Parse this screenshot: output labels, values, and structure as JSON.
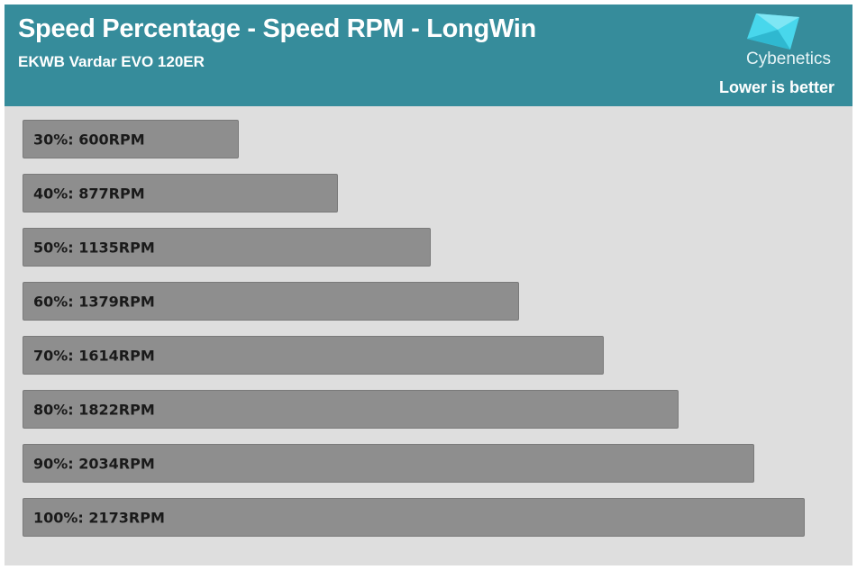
{
  "header": {
    "title": "Speed Percentage - Speed RPM - LongWin",
    "subtitle": "EKWB Vardar EVO 120ER",
    "brand": "Cybenetics",
    "note": "Lower is better"
  },
  "colors": {
    "header_bg": "#368c9b",
    "plot_bg": "#dedede",
    "bar_fill": "#8e8e8e",
    "logo_accent": "#48d7ec"
  },
  "chart_data": {
    "type": "bar",
    "orientation": "horizontal",
    "title": "Speed Percentage - Speed RPM - LongWin",
    "subtitle": "EKWB Vardar EVO 120ER",
    "categories": [
      "30%",
      "40%",
      "50%",
      "60%",
      "70%",
      "80%",
      "90%",
      "100%"
    ],
    "values": [
      600,
      877,
      1135,
      1379,
      1614,
      1822,
      2034,
      2173
    ],
    "bar_labels": [
      "30%: 600RPM",
      "40%: 877RPM",
      "50%: 1135RPM",
      "60%: 1379RPM",
      "70%: 1614RPM",
      "80%: 1822RPM",
      "90%: 2034RPM",
      "100%: 2173RPM"
    ],
    "unit": "RPM",
    "xlim": [
      0,
      2173
    ],
    "grid": false,
    "legend": "none"
  }
}
